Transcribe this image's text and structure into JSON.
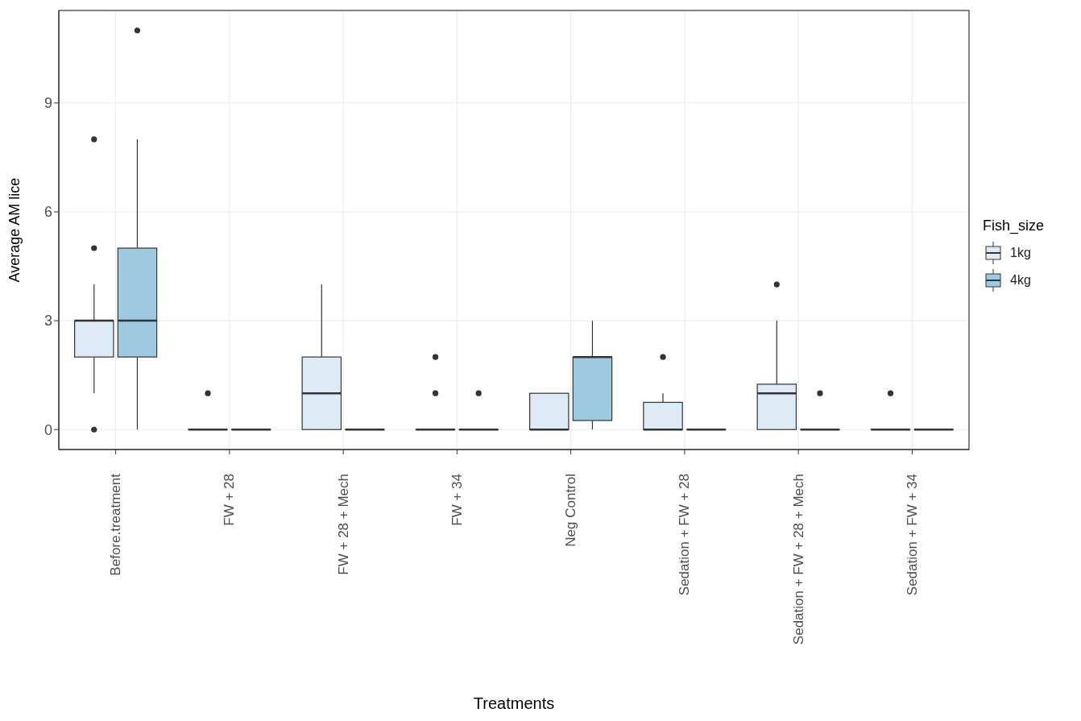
{
  "chart_data": {
    "type": "box",
    "xlabel": "Treatments",
    "ylabel": "Average AM lice",
    "legend_title": "Fish_size",
    "legend": "right",
    "grid": true,
    "categories": [
      "Before.treatment",
      "FW + 28",
      "FW + 28 + Mech",
      "FW + 34",
      "Neg Control",
      "Sedation + FW + 28",
      "Sedation + FW + 28 + Mech",
      "Sedation + FW + 34"
    ],
    "ylim": [
      -0.55,
      11.55
    ],
    "yticks": [
      0,
      3,
      6,
      9
    ],
    "series": [
      {
        "name": "1kg",
        "color": "#deebf7",
        "boxes": [
          {
            "low": 1,
            "q1": 2,
            "median": 3,
            "q3": 3,
            "high": 4,
            "outliers": [
              0,
              5,
              8
            ]
          },
          {
            "low": 0,
            "q1": 0,
            "median": 0,
            "q3": 0,
            "high": 0,
            "outliers": [
              1
            ]
          },
          {
            "low": 0,
            "q1": 0,
            "median": 1,
            "q3": 2,
            "high": 4
          },
          {
            "low": 0,
            "q1": 0,
            "median": 0,
            "q3": 0,
            "high": 0,
            "outliers": [
              1,
              2
            ]
          },
          {
            "low": 0,
            "q1": 0,
            "median": 0,
            "q3": 1,
            "high": 1
          },
          {
            "low": 0,
            "q1": 0,
            "median": 0,
            "q3": 0.75,
            "high": 1,
            "outliers": [
              2
            ]
          },
          {
            "low": 0,
            "q1": 0,
            "median": 1,
            "q3": 1.25,
            "high": 3,
            "outliers": [
              4
            ]
          },
          {
            "low": 0,
            "q1": 0,
            "median": 0,
            "q3": 0,
            "high": 0,
            "outliers": [
              1
            ]
          }
        ]
      },
      {
        "name": "4kg",
        "color": "#9ecae1",
        "boxes": [
          {
            "low": 0,
            "q1": 2,
            "median": 3,
            "q3": 5,
            "high": 8,
            "outliers": [
              11
            ]
          },
          {
            "low": 0,
            "q1": 0,
            "median": 0,
            "q3": 0,
            "high": 0
          },
          {
            "low": 0,
            "q1": 0,
            "median": 0,
            "q3": 0,
            "high": 0
          },
          {
            "low": 0,
            "q1": 0,
            "median": 0,
            "q3": 0,
            "high": 0,
            "outliers": [
              1
            ]
          },
          {
            "low": 0,
            "q1": 0.25,
            "median": 2,
            "q3": 2,
            "high": 3
          },
          {
            "low": 0,
            "q1": 0,
            "median": 0,
            "q3": 0,
            "high": 0
          },
          {
            "low": 0,
            "q1": 0,
            "median": 0,
            "q3": 0,
            "high": 0,
            "outliers": [
              1
            ]
          },
          {
            "low": 0,
            "q1": 0,
            "median": 0,
            "q3": 0,
            "high": 0
          }
        ]
      }
    ]
  }
}
